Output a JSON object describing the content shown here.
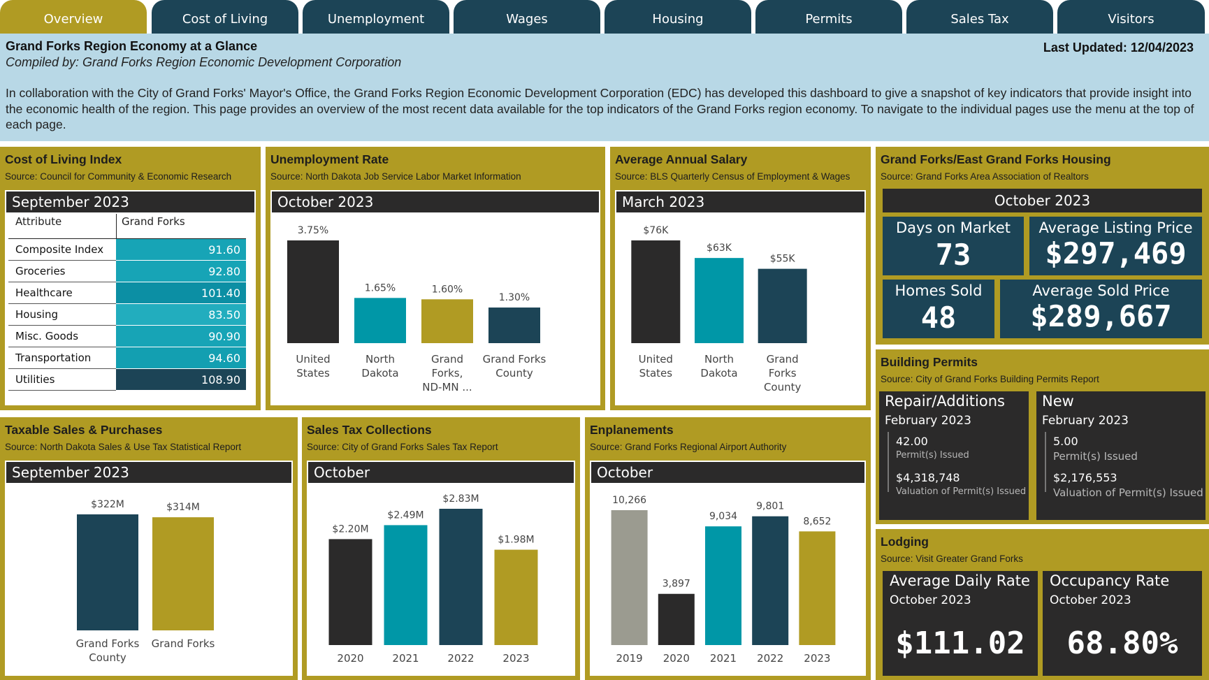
{
  "tabs": [
    {
      "label": "Overview",
      "active": true
    },
    {
      "label": "Cost of Living",
      "active": false
    },
    {
      "label": "Unemployment",
      "active": false
    },
    {
      "label": "Wages",
      "active": false
    },
    {
      "label": "Housing",
      "active": false
    },
    {
      "label": "Permits",
      "active": false
    },
    {
      "label": "Sales Tax",
      "active": false
    },
    {
      "label": "Visitors",
      "active": false
    }
  ],
  "header": {
    "title": "Grand Forks Region Economy at a Glance",
    "last_updated": "Last Updated: 12/04/2023",
    "compiled_by": "Compiled by: Grand Forks Region Economic Development Corporation",
    "description": "In collaboration with the City of Grand Forks' Mayor's Office, the Grand Forks Region Economic Development Corporation (EDC) has developed this dashboard to give a snapshot of key indicators that provide insight into the economic health of the region. This page provides an overview of the most recent data available for the top indicators of the Grand Forks region economy. To navigate to the individual pages use the menu at the top of each page."
  },
  "colors": {
    "gold": "#b09b23",
    "navy": "#1c4456",
    "teal": "#0097a7",
    "dark": "#2b2a2a",
    "gray": "#9b9b90",
    "header_bg": "#b8d8e6"
  },
  "cost_of_living": {
    "title": "Cost of Living Index",
    "source": "Source: Council for Community & Economic Research",
    "period": "September 2023",
    "col_attribute": "Attribute",
    "col_value": "Grand Forks",
    "rows": [
      {
        "label": "Composite Index",
        "value": "91.60",
        "color": "#17a4b6"
      },
      {
        "label": "Groceries",
        "value": "92.80",
        "color": "#17a4b6"
      },
      {
        "label": "Healthcare",
        "value": "101.40",
        "color": "#0c8fa4"
      },
      {
        "label": "Housing",
        "value": "83.50",
        "color": "#22adbe"
      },
      {
        "label": "Misc. Goods",
        "value": "90.90",
        "color": "#17a4b6"
      },
      {
        "label": "Transportation",
        "value": "94.60",
        "color": "#139fb1"
      },
      {
        "label": "Utilities",
        "value": "108.90",
        "color": "#1c4456"
      }
    ]
  },
  "unemployment": {
    "title": "Unemployment Rate",
    "source": "Source: North Dakota Job Service Labor Market Information",
    "period": "October 2023",
    "chart_data": {
      "type": "bar",
      "categories": [
        "United States",
        "North Dakota",
        "Grand Forks, ND-MN ...",
        "Grand Forks County"
      ],
      "category_lines": [
        [
          "United",
          "States"
        ],
        [
          "North",
          "Dakota"
        ],
        [
          "Grand",
          "Forks,",
          "ND-MN ..."
        ],
        [
          "Grand Forks",
          "County"
        ]
      ],
      "values": [
        3.75,
        1.65,
        1.6,
        1.3
      ],
      "labels": [
        "3.75%",
        "1.65%",
        "1.60%",
        "1.30%"
      ],
      "colors": [
        "#2b2a2a",
        "#0097a7",
        "#b09b23",
        "#1c4456"
      ],
      "ylim": [
        0,
        3.75
      ]
    }
  },
  "salary": {
    "title": "Average Annual Salary",
    "source": "Source: BLS Quarterly Census of Employment & Wages",
    "period": "March 2023",
    "chart_data": {
      "type": "bar",
      "categories": [
        "United States",
        "North Dakota",
        "Grand Forks County"
      ],
      "category_lines": [
        [
          "United",
          "States"
        ],
        [
          "North",
          "Dakota"
        ],
        [
          "Grand",
          "Forks",
          "County"
        ]
      ],
      "values": [
        76,
        63,
        55
      ],
      "labels": [
        "$76K",
        "$63K",
        "$55K"
      ],
      "colors": [
        "#2b2a2a",
        "#0097a7",
        "#1c4456"
      ],
      "ylim": [
        0,
        76
      ]
    }
  },
  "housing": {
    "title": "Grand Forks/East Grand Forks Housing",
    "source": "Source: Grand Forks Area Association of Realtors",
    "period": "October 2023",
    "days_label": "Days on Market",
    "days_value": "73",
    "listing_label": "Average Listing Price",
    "listing_value": "$297,469",
    "sold_label": "Homes Sold",
    "sold_value": "48",
    "sold_price_label": "Average Sold Price",
    "sold_price_value": "$289,667"
  },
  "permits": {
    "title": "Building Permits",
    "source": "Source: City of Grand Forks Building Permits Report",
    "repair": {
      "title": "Repair/Additions",
      "date": "February 2023",
      "count": "42.00",
      "count_label": "Permit(s) Issued",
      "valuation": "$4,318,748",
      "valuation_label": "Valuation of Permit(s) Issued"
    },
    "new": {
      "title": "New",
      "date": "February 2023",
      "count": "5.00",
      "count_label": "Permit(s) Issued",
      "valuation": "$2,176,553",
      "valuation_label": "Valuation of Permit(s) Issued"
    }
  },
  "taxable_sales": {
    "title": "Taxable Sales & Purchases",
    "source": "Source: North Dakota Sales & Use Tax Statistical Report",
    "period": "September 2023",
    "chart_data": {
      "type": "bar",
      "categories": [
        "Grand Forks County",
        "Grand Forks"
      ],
      "category_lines": [
        [
          "Grand Forks",
          "County"
        ],
        [
          "Grand Forks"
        ]
      ],
      "values": [
        322,
        314
      ],
      "labels": [
        "$322M",
        "$314M"
      ],
      "colors": [
        "#1c4456",
        "#b09b23"
      ],
      "ylim": [
        0,
        322
      ]
    }
  },
  "sales_tax": {
    "title": "Sales Tax Collections",
    "source": "Source: City of Grand Forks Sales Tax Report",
    "period": "October",
    "chart_data": {
      "type": "bar",
      "categories": [
        "2020",
        "2021",
        "2022",
        "2023"
      ],
      "category_lines": [
        [
          "2020"
        ],
        [
          "2021"
        ],
        [
          "2022"
        ],
        [
          "2023"
        ]
      ],
      "values": [
        2.2,
        2.49,
        2.83,
        1.98
      ],
      "labels": [
        "$2.20M",
        "$2.49M",
        "$2.83M",
        "$1.98M"
      ],
      "colors": [
        "#2b2a2a",
        "#0097a7",
        "#1c4456",
        "#b09b23"
      ],
      "ylim": [
        0,
        2.83
      ]
    }
  },
  "enplanements": {
    "title": "Enplanements",
    "source": "Source: Grand Forks Regional Airport Authority",
    "period": "October",
    "chart_data": {
      "type": "bar",
      "categories": [
        "2019",
        "2020",
        "2021",
        "2022",
        "2023"
      ],
      "category_lines": [
        [
          "2019"
        ],
        [
          "2020"
        ],
        [
          "2021"
        ],
        [
          "2022"
        ],
        [
          "2023"
        ]
      ],
      "values": [
        10266,
        3897,
        9034,
        9801,
        8652
      ],
      "labels": [
        "10,266",
        "3,897",
        "9,034",
        "9,801",
        "8,652"
      ],
      "colors": [
        "#9b9b90",
        "#2b2a2a",
        "#0097a7",
        "#1c4456",
        "#b09b23"
      ],
      "ylim": [
        0,
        10266
      ]
    }
  },
  "lodging": {
    "title": "Lodging",
    "source": "Source: Visit Greater Grand Forks",
    "adr_label": "Average Daily Rate",
    "adr_date": "October 2023",
    "adr_value": "$111.02",
    "occ_label": "Occupancy Rate",
    "occ_date": "October 2023",
    "occ_value": "68.80%"
  }
}
